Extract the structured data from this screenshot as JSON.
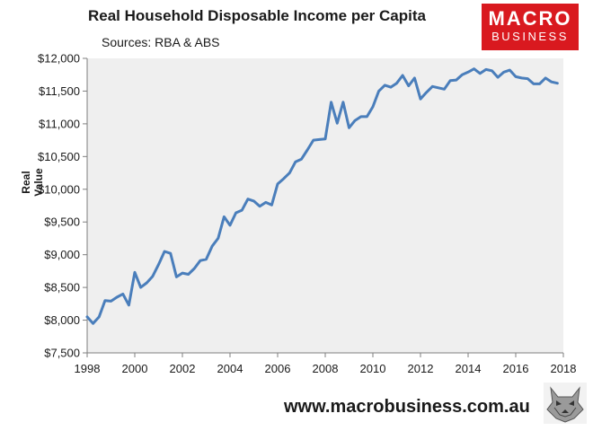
{
  "header": {
    "title": "Real Household Disposable Income per Capita",
    "subtitle": "Sources: RBA & ABS",
    "logo_line1": "MACRO",
    "logo_line2": "BUSINESS"
  },
  "footer": {
    "website": "www.macrobusiness.com.au",
    "wolf_icon": "wolf-icon"
  },
  "colors": {
    "line": "#4a7ebb",
    "plot_bg": "#efefef",
    "logo_bg": "#d9191f"
  },
  "chart_data": {
    "type": "line",
    "title": "Real Household Disposable Income per Capita",
    "subtitle": "Sources: RBA & ABS",
    "xlabel": "",
    "ylabel": "Real Value",
    "xlim": [
      1998,
      2018
    ],
    "ylim": [
      7500,
      12000
    ],
    "grid": false,
    "x_ticks": [
      1998,
      2000,
      2002,
      2004,
      2006,
      2008,
      2010,
      2012,
      2014,
      2016,
      2018
    ],
    "x_tick_labels": [
      "1998",
      "2000",
      "2002",
      "2004",
      "2006",
      "2008",
      "2010",
      "2012",
      "2014",
      "2016",
      "2018"
    ],
    "y_ticks": [
      7500,
      8000,
      8500,
      9000,
      9500,
      10000,
      10500,
      11000,
      11500,
      12000
    ],
    "y_tick_labels": [
      "$7,500",
      "$8,000",
      "$8,500",
      "$9,000",
      "$9,500",
      "$10,000",
      "$10,500",
      "$11,000",
      "$11,500",
      "$12,000"
    ],
    "series": [
      {
        "name": "Real Household Disposable Income per Capita",
        "x": [
          1998.0,
          1998.25,
          1998.5,
          1998.75,
          1999.0,
          1999.25,
          1999.5,
          1999.75,
          2000.0,
          2000.25,
          2000.5,
          2000.75,
          2001.0,
          2001.25,
          2001.5,
          2001.75,
          2002.0,
          2002.25,
          2002.5,
          2002.75,
          2003.0,
          2003.25,
          2003.5,
          2003.75,
          2004.0,
          2004.25,
          2004.5,
          2004.75,
          2005.0,
          2005.25,
          2005.5,
          2005.75,
          2006.0,
          2006.25,
          2006.5,
          2006.75,
          2007.0,
          2007.25,
          2007.5,
          2007.75,
          2008.0,
          2008.25,
          2008.5,
          2008.75,
          2009.0,
          2009.25,
          2009.5,
          2009.75,
          2010.0,
          2010.25,
          2010.5,
          2010.75,
          2011.0,
          2011.25,
          2011.5,
          2011.75,
          2012.0,
          2012.25,
          2012.5,
          2012.75,
          2013.0,
          2013.25,
          2013.5,
          2013.75,
          2014.0,
          2014.25,
          2014.5,
          2014.75,
          2015.0,
          2015.25,
          2015.5,
          2015.75,
          2016.0,
          2016.25,
          2016.5,
          2016.75,
          2017.0,
          2017.25,
          2017.5,
          2017.75
        ],
        "y": [
          8050,
          7950,
          8050,
          8300,
          8290,
          8350,
          8400,
          8230,
          8730,
          8500,
          8570,
          8670,
          8850,
          9050,
          9020,
          8660,
          8720,
          8700,
          8790,
          8910,
          8930,
          9130,
          9250,
          9580,
          9450,
          9640,
          9680,
          9850,
          9820,
          9740,
          9800,
          9760,
          10080,
          10160,
          10250,
          10420,
          10460,
          10600,
          10750,
          10760,
          10770,
          11330,
          11010,
          11330,
          10940,
          11050,
          11110,
          11110,
          11260,
          11500,
          11590,
          11560,
          11620,
          11740,
          11580,
          11700,
          11380,
          11480,
          11570,
          11550,
          11530,
          11660,
          11670,
          11750,
          11790,
          11840,
          11770,
          11830,
          11810,
          11710,
          11790,
          11820,
          11720,
          11700,
          11690,
          11610,
          11610,
          11700,
          11640,
          11620
        ]
      }
    ]
  }
}
